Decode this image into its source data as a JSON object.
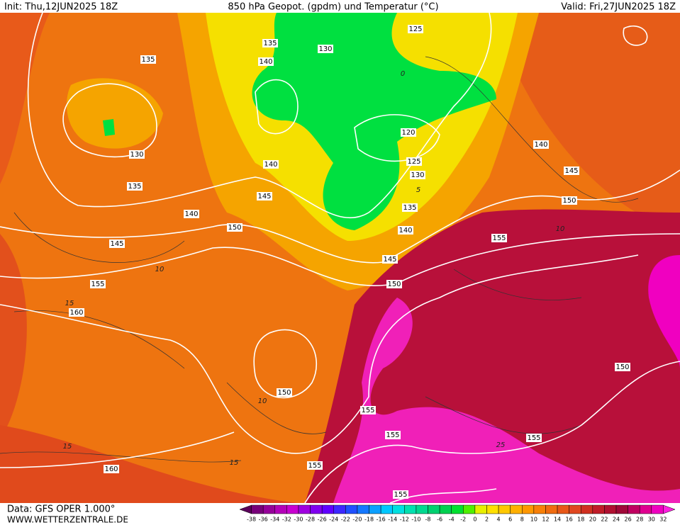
{
  "header": {
    "init": "Init: Thu,12JUN2025 18Z",
    "title": "850 hPa Geopot. (gpdm) und Temperatur (°C)",
    "valid": "Valid: Fri,27JUN2025 18Z"
  },
  "map": {
    "geopot_labels": [
      135,
      135,
      130,
      140,
      125,
      130,
      135,
      140,
      120,
      125,
      130,
      145,
      140,
      135,
      140,
      150,
      145,
      145,
      150,
      155,
      160,
      140,
      145,
      150,
      155,
      150,
      150,
      155,
      155,
      155,
      160,
      155,
      155
    ],
    "temp_labels": [
      10,
      15,
      10,
      15,
      15,
      25,
      10,
      5,
      0
    ]
  },
  "colorbar": {
    "labels": [
      -38,
      -36,
      -34,
      -32,
      -30,
      -28,
      -26,
      -24,
      -22,
      -20,
      -18,
      -16,
      -14,
      -12,
      -10,
      -8,
      -6,
      -4,
      -2,
      0,
      2,
      4,
      6,
      8,
      10,
      12,
      14,
      16,
      18,
      20,
      22,
      24,
      26,
      28,
      30,
      32
    ],
    "colors": [
      "#5a005a",
      "#78007a",
      "#96009a",
      "#b400b8",
      "#c800d0",
      "#a000e0",
      "#8000f0",
      "#6000ff",
      "#3c28ff",
      "#2050ff",
      "#1478ff",
      "#0ca0ff",
      "#00c8ff",
      "#00e0e0",
      "#00e0b0",
      "#00d890",
      "#00d070",
      "#00d050",
      "#00e030",
      "#50f000",
      "#e8f000",
      "#ffe000",
      "#ffc800",
      "#ffb000",
      "#ff9800",
      "#f88008",
      "#f06c10",
      "#e85818",
      "#e04820",
      "#d03020",
      "#c01c28",
      "#b01030",
      "#a00838",
      "#c00060",
      "#e00090",
      "#f000c0",
      "#ff20e0"
    ]
  },
  "footer": {
    "data": "Data: GFS OPER 1.000°",
    "site": "WWW.WETTERZENTRALE.DE"
  }
}
